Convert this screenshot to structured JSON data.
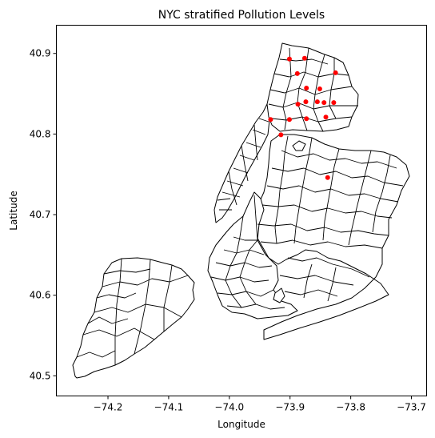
{
  "chart_data": {
    "type": "scatter",
    "title": "NYC stratified Pollution Levels",
    "xlabel": "Longitude",
    "ylabel": "Latitude",
    "xlim": [
      -74.285,
      -73.675
    ],
    "ylim": [
      40.475,
      40.935
    ],
    "xticks": [
      -74.2,
      -74.1,
      -74.0,
      -73.9,
      -73.8,
      -73.7
    ],
    "xtick_labels": [
      "−74.2",
      "−74.1",
      "−74.0",
      "−73.9",
      "−73.8",
      "−73.7"
    ],
    "yticks": [
      40.5,
      40.6,
      40.7,
      40.8,
      40.9
    ],
    "ytick_labels": [
      "40.5",
      "40.6",
      "40.7",
      "40.8",
      "40.9"
    ],
    "grid": false,
    "point_color": "#ff0000",
    "points": [
      {
        "x": -73.901,
        "y": 40.893
      },
      {
        "x": -73.876,
        "y": 40.894
      },
      {
        "x": -73.888,
        "y": 40.875
      },
      {
        "x": -73.825,
        "y": 40.876
      },
      {
        "x": -73.873,
        "y": 40.857
      },
      {
        "x": -73.851,
        "y": 40.856
      },
      {
        "x": -73.887,
        "y": 40.837
      },
      {
        "x": -73.874,
        "y": 40.84
      },
      {
        "x": -73.855,
        "y": 40.84
      },
      {
        "x": -73.844,
        "y": 40.839
      },
      {
        "x": -73.828,
        "y": 40.839
      },
      {
        "x": -73.932,
        "y": 40.818
      },
      {
        "x": -73.901,
        "y": 40.818
      },
      {
        "x": -73.873,
        "y": 40.819
      },
      {
        "x": -73.841,
        "y": 40.821
      },
      {
        "x": -73.915,
        "y": 40.799
      },
      {
        "x": -73.838,
        "y": 40.746
      }
    ]
  }
}
